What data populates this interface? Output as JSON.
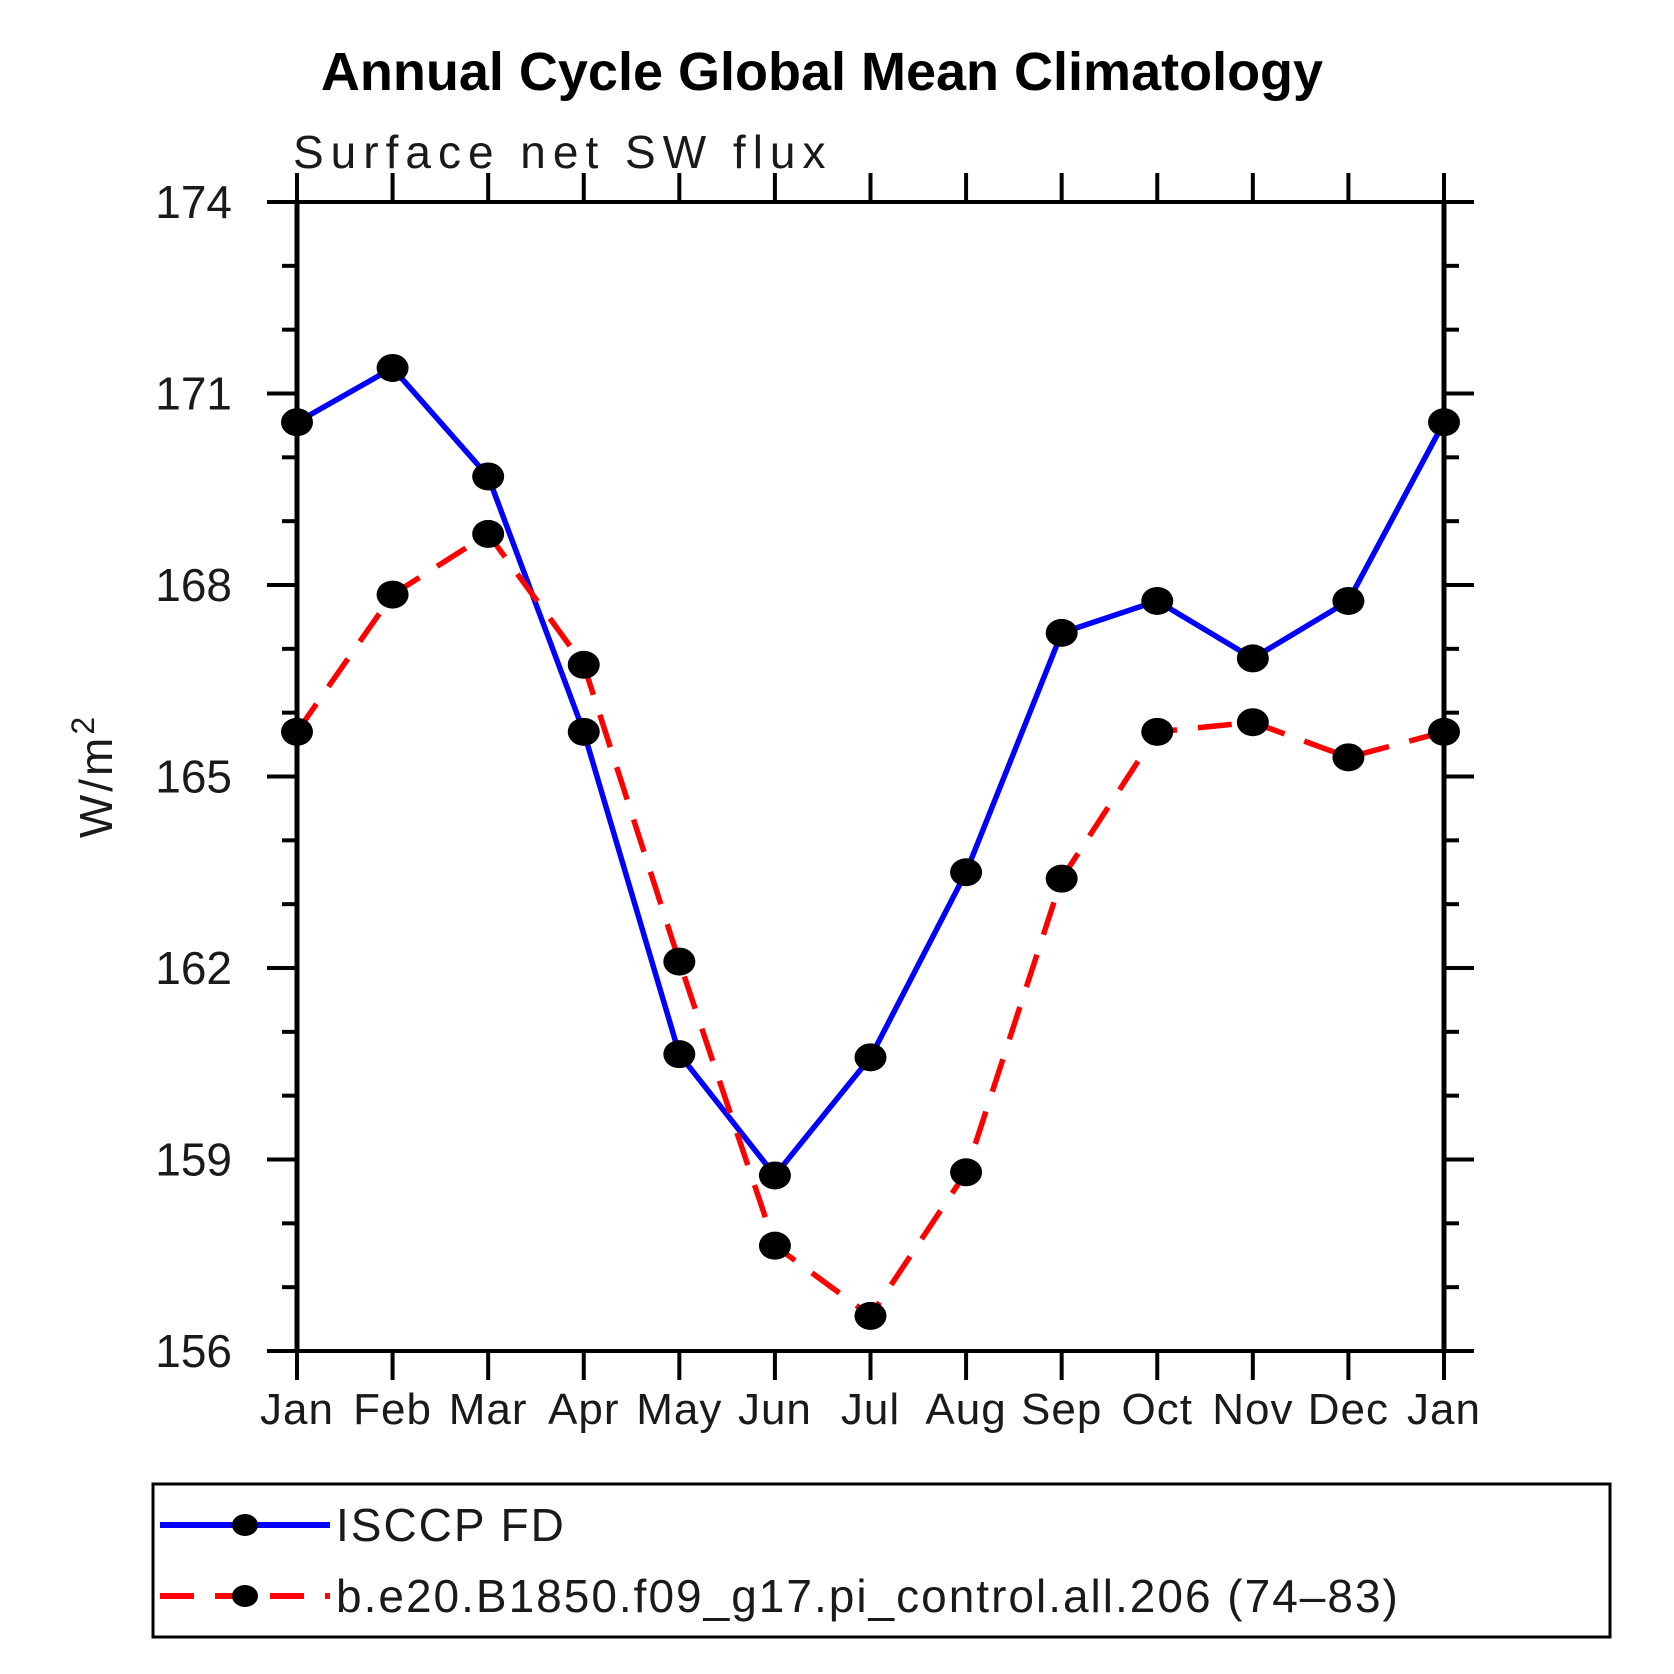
{
  "ylabel": {
    "base": "W/m",
    "sup": "2"
  },
  "chart_data": {
    "type": "line",
    "title": "Annual Cycle Global Mean Climatology",
    "subtitle": "Surface net SW flux",
    "xlabel": "",
    "ylabel": "W/m²",
    "categories": [
      "Jan",
      "Feb",
      "Mar",
      "Apr",
      "May",
      "Jun",
      "Jul",
      "Aug",
      "Sep",
      "Oct",
      "Nov",
      "Dec",
      "Jan"
    ],
    "series": [
      {
        "name": "ISCCP FD",
        "color": "#0000ff",
        "line_style": "solid",
        "marker": "filled-circle",
        "marker_color": "#000000",
        "values": [
          170.55,
          171.4,
          169.7,
          165.7,
          160.65,
          158.75,
          160.6,
          163.5,
          167.25,
          167.75,
          166.85,
          167.75,
          170.55
        ]
      },
      {
        "name": "b.e20.B1850.f09_g17.pi_control.all.206 (74–83)",
        "color": "#ff0000",
        "line_style": "dashed",
        "marker": "filled-circle",
        "marker_color": "#000000",
        "values": [
          165.7,
          167.85,
          168.8,
          166.75,
          162.1,
          157.65,
          156.55,
          158.8,
          163.4,
          165.7,
          165.85,
          165.3,
          165.7
        ]
      }
    ],
    "ylim": [
      156,
      174
    ],
    "ytick_major_step": 3,
    "ytick_minor_step": 1,
    "y_major_tick_labels": [
      "156",
      "159",
      "162",
      "165",
      "168",
      "171",
      "174"
    ],
    "grid": false,
    "legend_position": "bottom-left-box"
  }
}
